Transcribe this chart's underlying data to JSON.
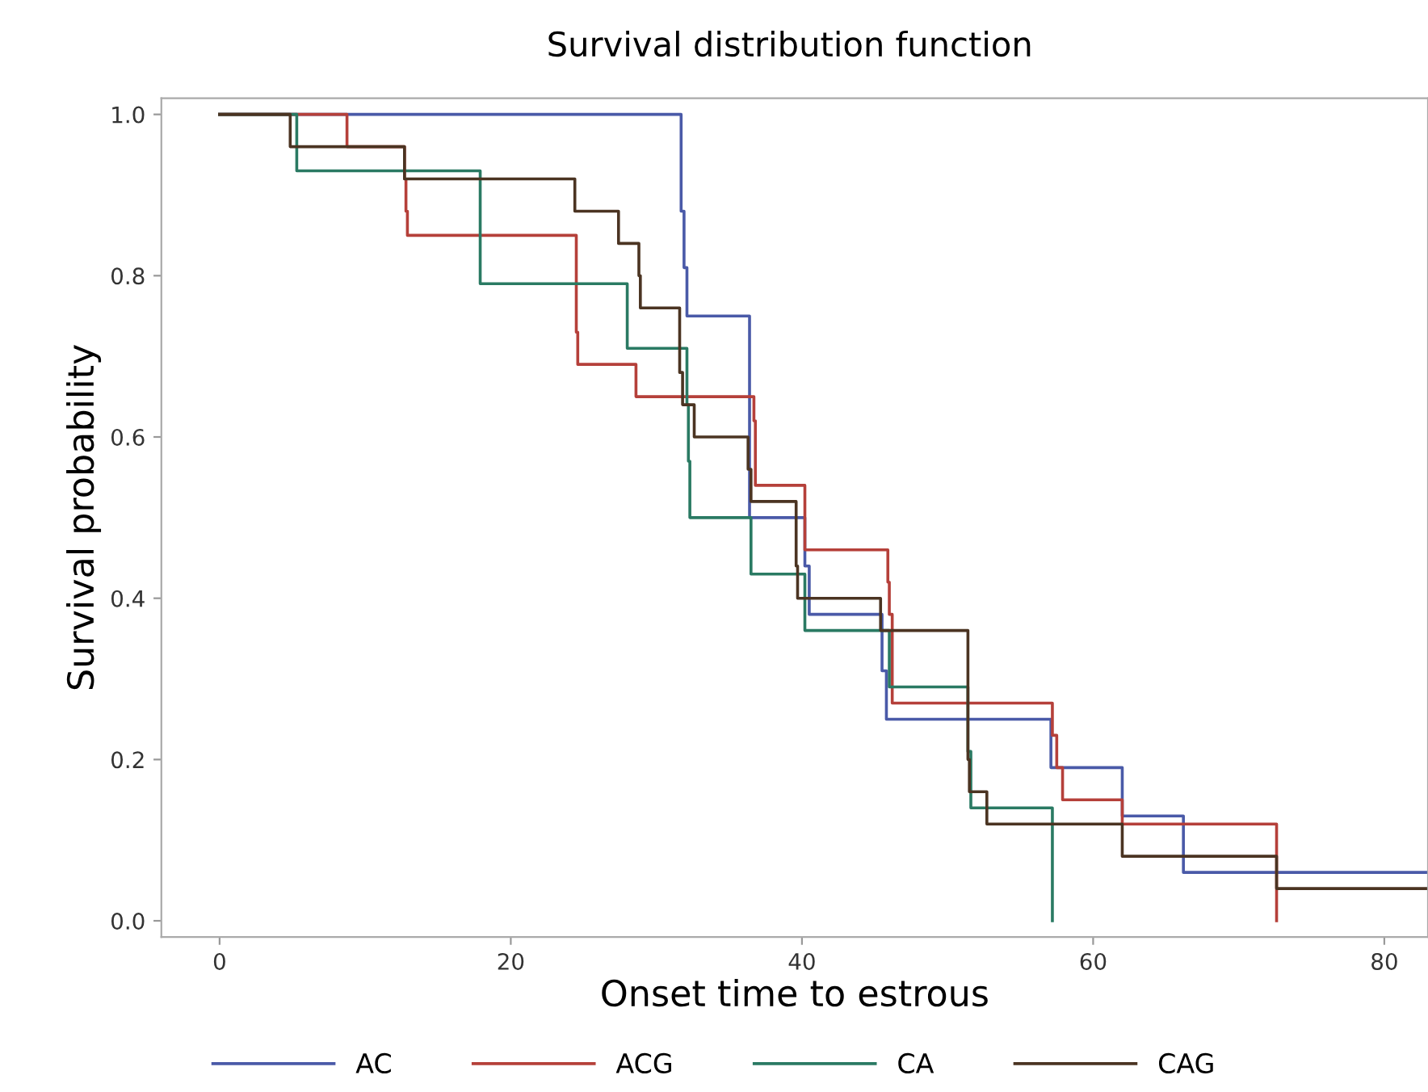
{
  "chart_data": {
    "type": "step",
    "title": "Survival distribution function",
    "xlabel": "Onset time to estrous",
    "ylabel": "Survival probability",
    "xlim": [
      -4,
      83
    ],
    "xticks": [
      0,
      20,
      40,
      60,
      80
    ],
    "ylim": [
      -0.02,
      1.02
    ],
    "yticks": [
      {
        "value": 0,
        "label": "0.0"
      },
      0.2,
      0.4,
      0.6,
      0.8,
      {
        "value": 1,
        "label": "1.0"
      }
    ],
    "grid": false,
    "legend": "bottom",
    "marker": "none",
    "line_style": "solid",
    "series": [
      {
        "name": "AC",
        "color": "#4a5aa8",
        "x": [
          0,
          31.7,
          31.9,
          32.1,
          36.4,
          40.2,
          40.5,
          45.5,
          45.8,
          57.1,
          62.0,
          66.2,
          83
        ],
        "values": [
          1,
          0.88,
          0.81,
          0.75,
          0.5,
          0.44,
          0.38,
          0.31,
          0.25,
          0.19,
          0.13,
          0.06,
          0.06
        ]
      },
      {
        "name": "ACG",
        "color": "#b5403a",
        "x": [
          0,
          8.75,
          12.7,
          12.8,
          12.9,
          24.5,
          24.6,
          28.6,
          36.7,
          36.8,
          40.2,
          45.9,
          46.0,
          46.2,
          57.2,
          57.5,
          57.9,
          62.0,
          72.6
        ],
        "values": [
          1,
          0.96,
          0.92,
          0.88,
          0.85,
          0.73,
          0.69,
          0.65,
          0.62,
          0.54,
          0.46,
          0.42,
          0.38,
          0.27,
          0.23,
          0.19,
          0.15,
          0.12,
          0
        ]
      },
      {
        "name": "CA",
        "color": "#2a7a63",
        "x": [
          0,
          5.3,
          17.9,
          28.0,
          32.1,
          32.2,
          32.3,
          36.5,
          40.2,
          46.0,
          51.4,
          51.6,
          57.2
        ],
        "values": [
          1,
          0.93,
          0.79,
          0.71,
          0.64,
          0.57,
          0.5,
          0.43,
          0.36,
          0.29,
          0.21,
          0.14,
          0
        ]
      },
      {
        "name": "CAG",
        "color": "#4b3422",
        "x": [
          0,
          4.85,
          12.7,
          24.4,
          27.4,
          28.8,
          28.9,
          31.6,
          31.8,
          32.6,
          36.3,
          36.5,
          39.6,
          39.7,
          45.4,
          51.4,
          51.5,
          52.7,
          62.0,
          72.6,
          83
        ],
        "values": [
          1,
          0.96,
          0.92,
          0.88,
          0.84,
          0.8,
          0.76,
          0.68,
          0.64,
          0.6,
          0.56,
          0.52,
          0.44,
          0.4,
          0.36,
          0.2,
          0.16,
          0.12,
          0.08,
          0.04,
          0.04
        ]
      }
    ]
  }
}
